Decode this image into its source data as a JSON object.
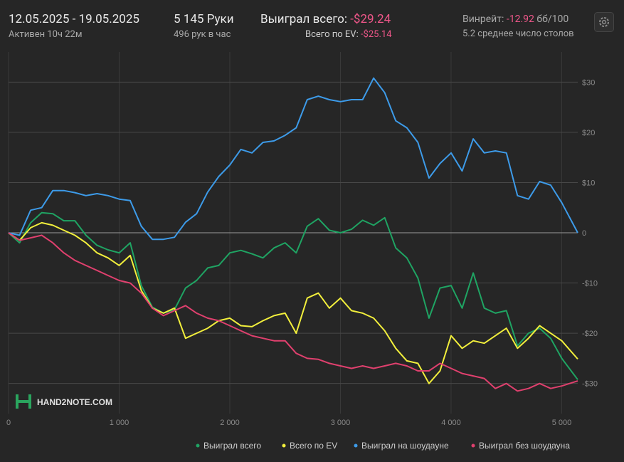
{
  "header": {
    "date_range": "12.05.2025 - 19.05.2025",
    "active": "Активен 10ч 22м",
    "hands": "5 145 Руки",
    "hands_per_hour": "496 рук в час",
    "won_label": "Выиграл всего:",
    "won_value": "-$29.24",
    "ev_label": "Всего по EV:",
    "ev_value": "-$25.14",
    "winrate_label": "Винрейт:",
    "winrate_value": "-12.92",
    "winrate_unit": "бб/100",
    "tables": "5.2 среднее число столов",
    "logo": "HAND2NOTE.COM"
  },
  "chart_data": {
    "type": "line",
    "x": [
      0,
      100,
      200,
      300,
      400,
      500,
      600,
      700,
      800,
      900,
      1000,
      1100,
      1200,
      1300,
      1400,
      1500,
      1600,
      1700,
      1800,
      1900,
      2000,
      2100,
      2200,
      2300,
      2400,
      2500,
      2600,
      2700,
      2800,
      2900,
      3000,
      3100,
      3200,
      3300,
      3400,
      3500,
      3600,
      3700,
      3800,
      3900,
      4000,
      4100,
      4200,
      4300,
      4400,
      4500,
      4600,
      4700,
      4800,
      4900,
      5000,
      5145
    ],
    "xlim": [
      0,
      5145
    ],
    "xticks": [
      0,
      {
        "value": 1000,
        "label": "1 000"
      },
      {
        "value": 2000,
        "label": "2 000"
      },
      {
        "value": 3000,
        "label": "3 000"
      },
      {
        "value": 4000,
        "label": "4 000"
      },
      {
        "value": 5000,
        "label": "5 000"
      }
    ],
    "ylim": [
      -36,
      36
    ],
    "yticks": [
      {
        "value": -30,
        "label": "-$30"
      },
      {
        "value": -20,
        "label": "-$20"
      },
      {
        "value": -10,
        "label": "-$10"
      },
      0,
      {
        "value": 10,
        "label": "$10"
      },
      {
        "value": 20,
        "label": "$20"
      },
      {
        "value": 30,
        "label": "$30"
      }
    ],
    "grid": true,
    "series": [
      {
        "name": "Выиграл всего",
        "color": "#1fa463",
        "values": [
          0,
          -2,
          2,
          4,
          3.8,
          2.4,
          2.4,
          -0.5,
          -2.5,
          -3.4,
          -4,
          -2,
          -10.5,
          -14.8,
          -16,
          -15.3,
          -11,
          -9.5,
          -7,
          -6.5,
          -4,
          -3.5,
          -4.2,
          -5,
          -3,
          -2,
          -4,
          1.3,
          2.8,
          0.5,
          0,
          0.7,
          2.5,
          1.5,
          3,
          -3,
          -5,
          -9,
          -17,
          -11,
          -10.5,
          -15,
          -8,
          -15,
          -16,
          -15.5,
          -22.5,
          -20,
          -19,
          -21,
          -25,
          -29.24
        ]
      },
      {
        "name": "Всего по EV",
        "color": "#f2ef3c",
        "values": [
          0,
          -1.5,
          1,
          2,
          1.5,
          0.5,
          -0.5,
          -2,
          -4,
          -5,
          -6.5,
          -4.5,
          -11.5,
          -15,
          -16,
          -15,
          -21,
          -20,
          -19,
          -17.5,
          -17,
          -18.5,
          -18.7,
          -17.5,
          -16.5,
          -16,
          -20,
          -13,
          -12,
          -15,
          -13,
          -15.5,
          -16,
          -17,
          -19.5,
          -23,
          -25.5,
          -26,
          -30,
          -27.5,
          -20.5,
          -23,
          -21.5,
          -22,
          -20.5,
          -19,
          -23,
          -21,
          -18.5,
          -20,
          -21.5,
          -25.14
        ]
      },
      {
        "name": "Выиграл на шоудауне",
        "color": "#3d9be9",
        "values": [
          0,
          -0.5,
          4.5,
          5,
          8.4,
          8.4,
          8,
          7.4,
          7.8,
          7.4,
          6.7,
          6.4,
          1.3,
          -1.3,
          -1.3,
          -0.9,
          2.1,
          3.8,
          8.1,
          11.2,
          13.5,
          16.6,
          15.9,
          18,
          18.3,
          19.4,
          20.9,
          26.5,
          27.2,
          26.5,
          26.1,
          26.5,
          26.5,
          30.8,
          27.9,
          22.3,
          20.9,
          18,
          10.9,
          13.8,
          15.9,
          12.3,
          18.7,
          15.9,
          16.3,
          15.9,
          7.4,
          6.7,
          10.2,
          9.5,
          6,
          0
        ]
      },
      {
        "name": "Выиграл без шоудауна",
        "color": "#e0406e",
        "values": [
          0,
          -1.5,
          -1,
          -0.5,
          -2,
          -4,
          -5.5,
          -6.5,
          -7.5,
          -8.5,
          -9.5,
          -10,
          -12,
          -15,
          -16.5,
          -15.5,
          -14.5,
          -16,
          -17,
          -17.5,
          -18.5,
          -19.5,
          -20.5,
          -21,
          -21.5,
          -21.5,
          -24,
          -25,
          -25.2,
          -26,
          -26.5,
          -27,
          -26.5,
          -27,
          -26.5,
          -26,
          -26.5,
          -27.5,
          -27.5,
          -26,
          -27,
          -28,
          -28.5,
          -29,
          -31,
          -30,
          -31.5,
          -31,
          -30,
          -31,
          -30.5,
          -29.5
        ]
      }
    ]
  }
}
